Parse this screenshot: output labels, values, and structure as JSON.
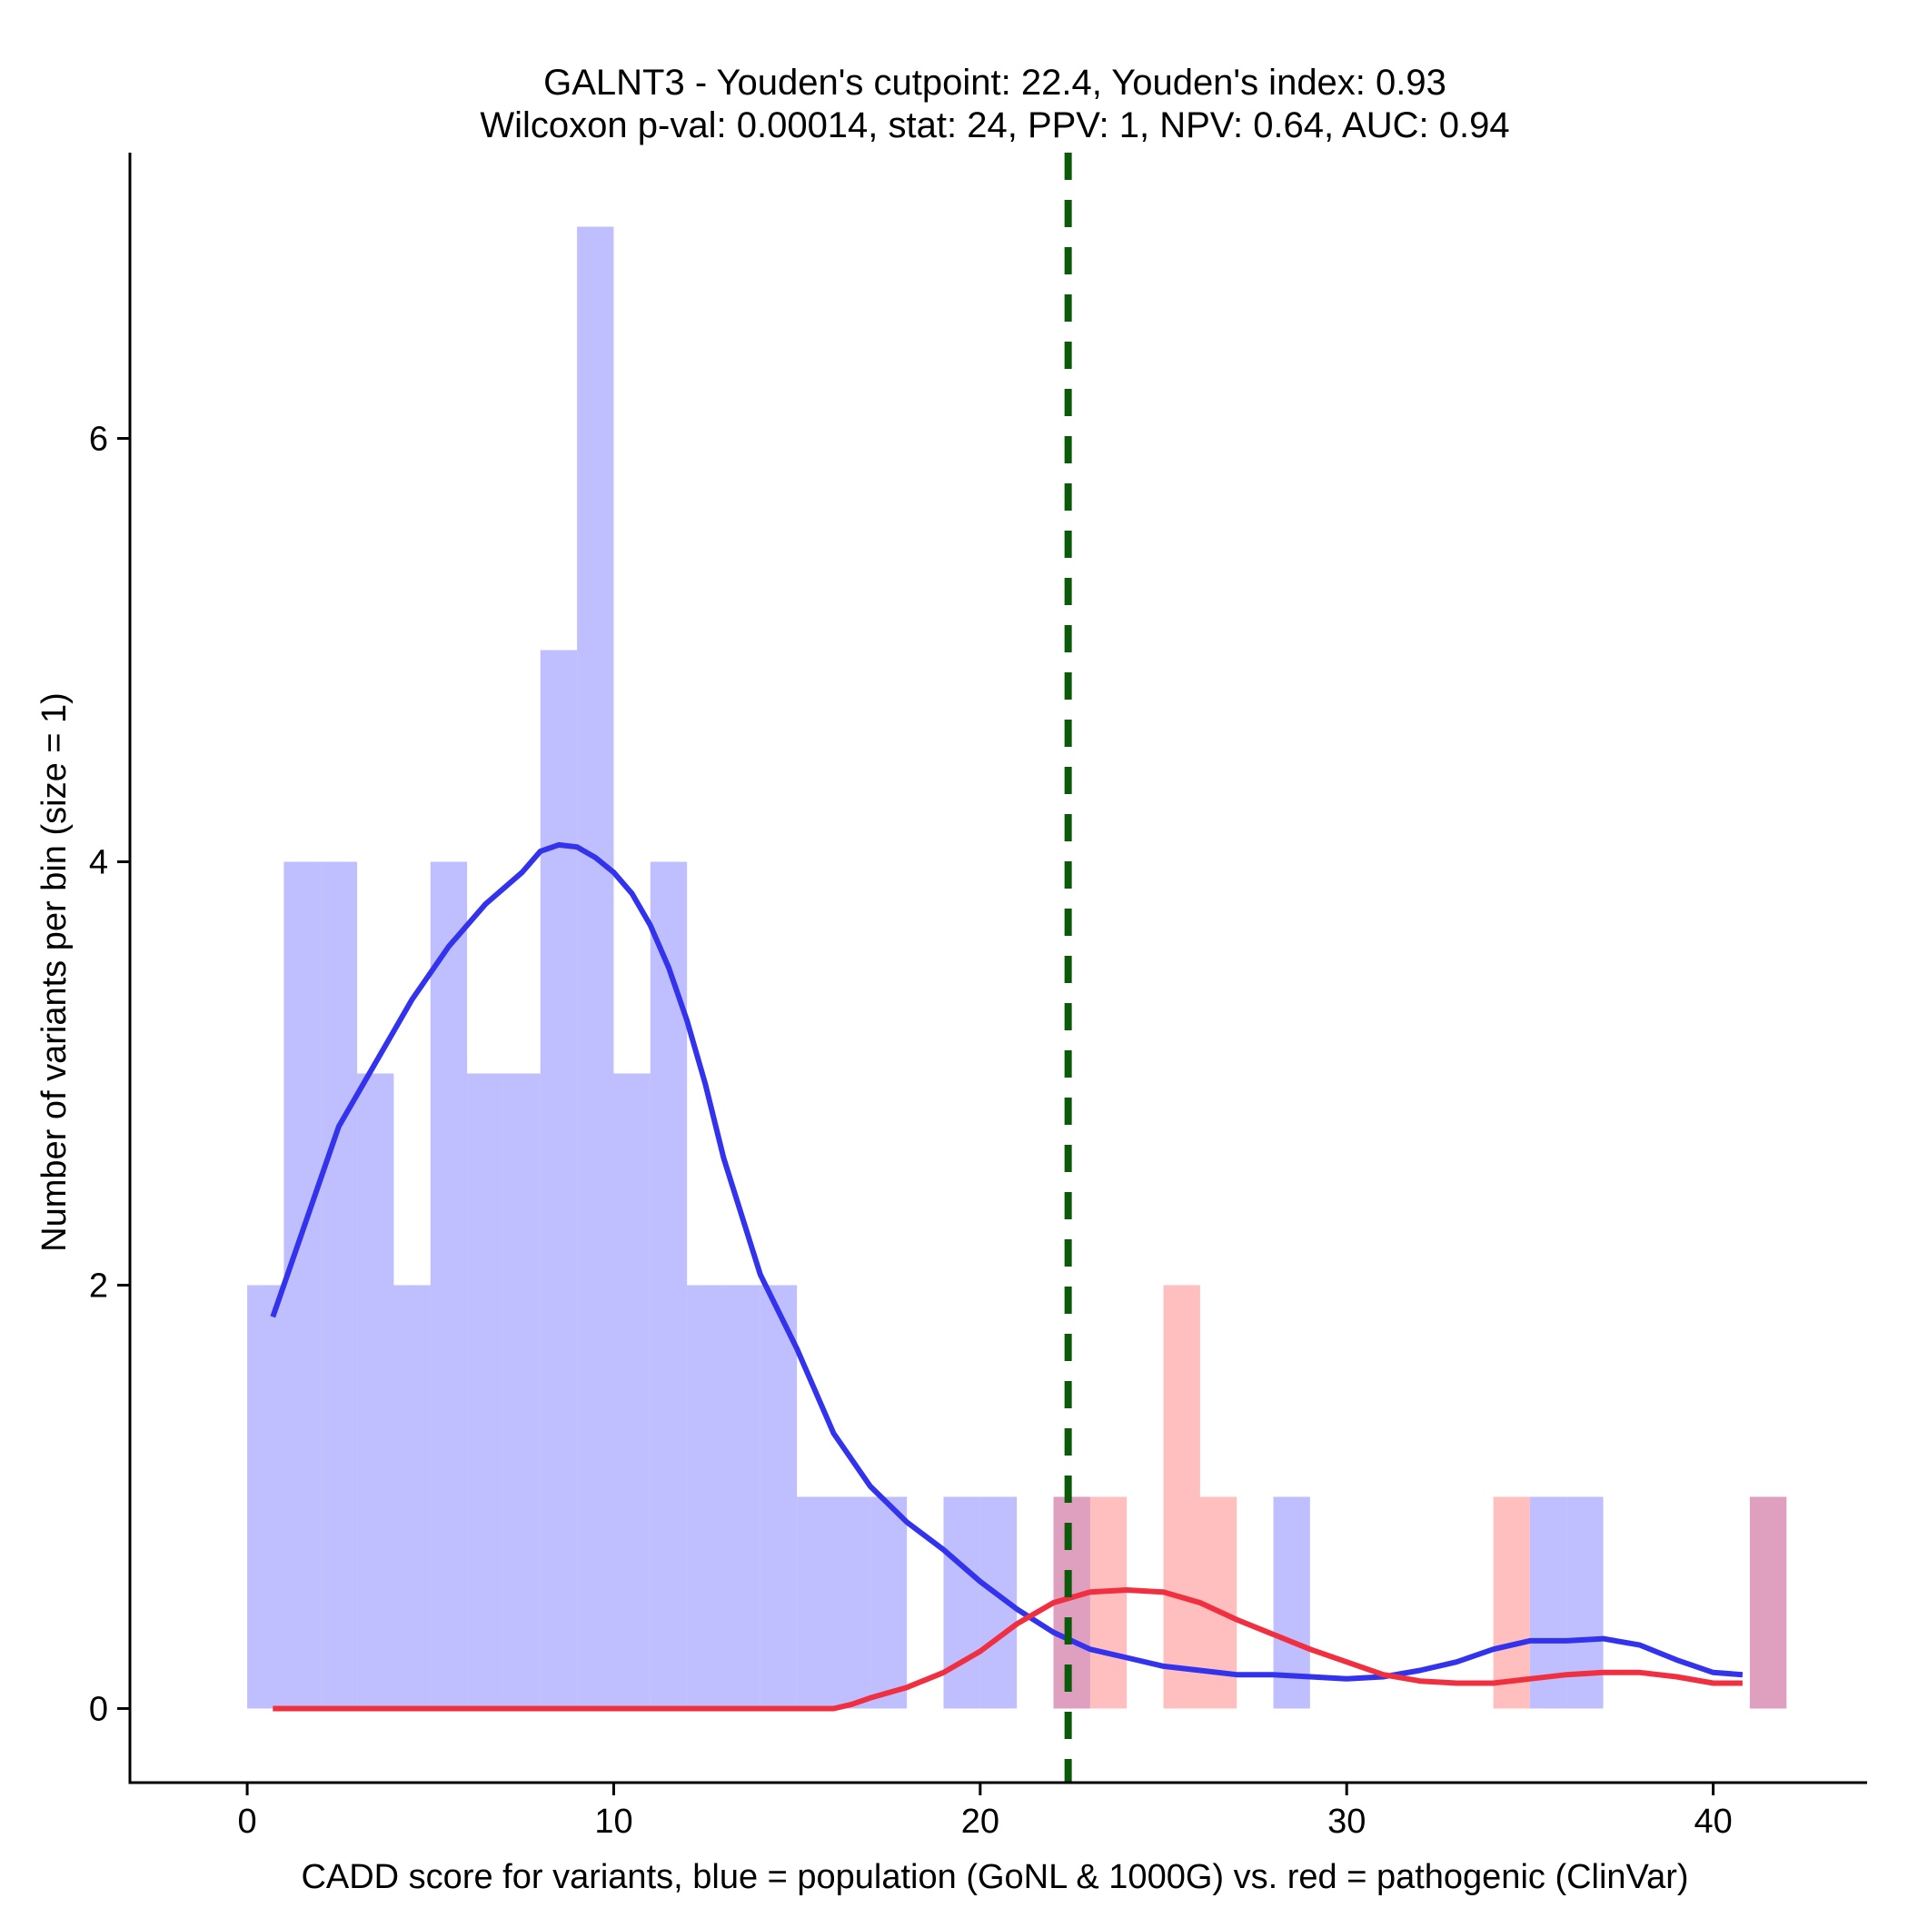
{
  "chart_data": {
    "type": "histogram",
    "title_lines": [
      "GALNT3 - Youden's cutpoint: 22.4, Youden's index: 0.93",
      "Wilcoxon p-val: 0.00014, stat: 24, PPV: 1, NPV: 0.64, AUC: 0.94"
    ],
    "xlabel": "CADD score for variants, blue = population (GoNL & 1000G) vs. red = pathogenic (ClinVar)",
    "ylabel": "Number of variants per bin (size = 1)",
    "xlim": [
      -3.2,
      44.2
    ],
    "ylim": [
      -0.35,
      7.35
    ],
    "x_ticks": [
      0,
      10,
      20,
      30,
      40
    ],
    "y_ticks": [
      0,
      2,
      4,
      6
    ],
    "bin_width": 1,
    "cutpoint": 22.4,
    "colors": {
      "population": "#8080ff",
      "pathogenic": "#ff8080",
      "population_density": "#3333ee",
      "pathogenic_density": "#f03040",
      "cutpoint_line": "#0a5a0a"
    },
    "series": [
      {
        "name": "population (GoNL & 1000G)",
        "color": "#8080ff",
        "bins": [
          {
            "start": 0,
            "count": 2
          },
          {
            "start": 1,
            "count": 4
          },
          {
            "start": 2,
            "count": 4
          },
          {
            "start": 3,
            "count": 3
          },
          {
            "start": 4,
            "count": 2
          },
          {
            "start": 5,
            "count": 4
          },
          {
            "start": 6,
            "count": 3
          },
          {
            "start": 7,
            "count": 3
          },
          {
            "start": 8,
            "count": 5
          },
          {
            "start": 9,
            "count": 7
          },
          {
            "start": 10,
            "count": 3
          },
          {
            "start": 11,
            "count": 4
          },
          {
            "start": 12,
            "count": 2
          },
          {
            "start": 13,
            "count": 2
          },
          {
            "start": 14,
            "count": 2
          },
          {
            "start": 15,
            "count": 1
          },
          {
            "start": 16,
            "count": 1
          },
          {
            "start": 17,
            "count": 1
          },
          {
            "start": 19,
            "count": 1
          },
          {
            "start": 20,
            "count": 1
          },
          {
            "start": 22,
            "count": 1
          },
          {
            "start": 28,
            "count": 1
          },
          {
            "start": 35,
            "count": 1
          },
          {
            "start": 36,
            "count": 1
          },
          {
            "start": 41,
            "count": 1
          }
        ]
      },
      {
        "name": "pathogenic (ClinVar)",
        "color": "#ff8080",
        "bins": [
          {
            "start": 22,
            "count": 1
          },
          {
            "start": 23,
            "count": 1
          },
          {
            "start": 25,
            "count": 2
          },
          {
            "start": 26,
            "count": 1
          },
          {
            "start": 34,
            "count": 1
          },
          {
            "start": 41,
            "count": 1
          }
        ]
      }
    ],
    "density_curves": [
      {
        "name": "population density",
        "color": "#3333ee",
        "x": [
          0.7,
          1.5,
          2.5,
          3.5,
          4.5,
          5.5,
          6.5,
          7.5,
          8.0,
          8.5,
          9.0,
          9.5,
          10.0,
          10.5,
          11.0,
          11.5,
          12.0,
          12.5,
          13.0,
          14.0,
          15.0,
          16.0,
          17.0,
          18.0,
          19.0,
          20.0,
          21.0,
          22.0,
          23.0,
          24.0,
          25.0,
          26.0,
          27.0,
          28.0,
          29.0,
          30.0,
          31.0,
          32.0,
          33.0,
          34.0,
          35.0,
          36.0,
          37.0,
          38.0,
          39.0,
          40.0,
          40.8
        ],
        "y": [
          1.85,
          2.25,
          2.75,
          3.05,
          3.35,
          3.6,
          3.8,
          3.95,
          4.05,
          4.08,
          4.07,
          4.02,
          3.95,
          3.85,
          3.7,
          3.5,
          3.25,
          2.95,
          2.6,
          2.05,
          1.7,
          1.3,
          1.05,
          0.88,
          0.75,
          0.6,
          0.47,
          0.36,
          0.28,
          0.24,
          0.2,
          0.18,
          0.16,
          0.16,
          0.15,
          0.14,
          0.15,
          0.18,
          0.22,
          0.28,
          0.32,
          0.32,
          0.33,
          0.3,
          0.23,
          0.17,
          0.16
        ]
      },
      {
        "name": "pathogenic density",
        "color": "#f03040",
        "x": [
          0.7,
          5.0,
          10.0,
          15.0,
          16.0,
          16.5,
          17.0,
          18.0,
          19.0,
          20.0,
          21.0,
          22.0,
          23.0,
          24.0,
          25.0,
          26.0,
          27.0,
          28.0,
          29.0,
          30.0,
          31.0,
          32.0,
          33.0,
          34.0,
          35.0,
          36.0,
          37.0,
          38.0,
          39.0,
          40.0,
          40.8
        ],
        "y": [
          0.0,
          0.0,
          0.0,
          0.0,
          0.0,
          0.02,
          0.05,
          0.1,
          0.17,
          0.27,
          0.4,
          0.5,
          0.55,
          0.56,
          0.55,
          0.5,
          0.42,
          0.35,
          0.28,
          0.22,
          0.16,
          0.13,
          0.12,
          0.12,
          0.14,
          0.16,
          0.17,
          0.17,
          0.15,
          0.12,
          0.12
        ]
      }
    ]
  }
}
